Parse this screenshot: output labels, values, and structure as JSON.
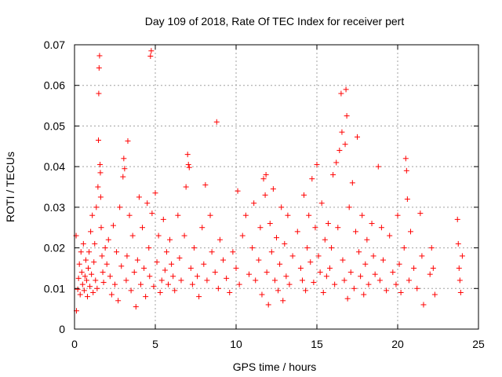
{
  "chart_data": {
    "type": "scatter",
    "title": "Day 109 of 2018, Rate Of TEC Index for receiver pert",
    "xlabel": "GPS time / hours",
    "ylabel": "ROTI / TECUs",
    "xlim": [
      0,
      25
    ],
    "ylim": [
      0,
      0.07
    ],
    "xticks": [
      0,
      5,
      10,
      15,
      20,
      25
    ],
    "xtick_labels": [
      "0",
      "5",
      "10",
      "15",
      "20",
      "25"
    ],
    "yticks": [
      0,
      0.01,
      0.02,
      0.03,
      0.04,
      0.05,
      0.06,
      0.07
    ],
    "ytick_labels": [
      "0",
      "0.01",
      "0.02",
      "0.03",
      "0.04",
      "0.05",
      "0.06",
      "0.07"
    ],
    "grid": true,
    "marker": "+",
    "color": "#ff0000",
    "series": [
      {
        "name": "ROTI",
        "points": [
          [
            0.1,
            0.023
          ],
          [
            0.12,
            0.0045
          ],
          [
            0.2,
            0.0098
          ],
          [
            0.25,
            0.0125
          ],
          [
            0.3,
            0.016
          ],
          [
            0.35,
            0.0085
          ],
          [
            0.4,
            0.019
          ],
          [
            0.45,
            0.014
          ],
          [
            0.5,
            0.011
          ],
          [
            0.55,
            0.021
          ],
          [
            0.6,
            0.0095
          ],
          [
            0.65,
            0.013
          ],
          [
            0.7,
            0.017
          ],
          [
            0.75,
            0.012
          ],
          [
            0.8,
            0.008
          ],
          [
            0.85,
            0.015
          ],
          [
            0.9,
            0.019
          ],
          [
            0.95,
            0.0105
          ],
          [
            1.0,
            0.024
          ],
          [
            1.05,
            0.0135
          ],
          [
            1.1,
            0.028
          ],
          [
            1.15,
            0.009
          ],
          [
            1.2,
            0.0165
          ],
          [
            1.25,
            0.021
          ],
          [
            1.3,
            0.012
          ],
          [
            1.35,
            0.03
          ],
          [
            1.4,
            0.01
          ],
          [
            1.45,
            0.035
          ],
          [
            1.48,
            0.0465
          ],
          [
            1.5,
            0.058
          ],
          [
            1.52,
            0.0643
          ],
          [
            1.55,
            0.0673
          ],
          [
            1.58,
            0.0405
          ],
          [
            1.6,
            0.0385
          ],
          [
            1.62,
            0.0325
          ],
          [
            1.65,
            0.025
          ],
          [
            1.7,
            0.018
          ],
          [
            1.75,
            0.014
          ],
          [
            1.8,
            0.0115
          ],
          [
            1.9,
            0.02
          ],
          [
            2.0,
            0.016
          ],
          [
            2.1,
            0.022
          ],
          [
            2.2,
            0.013
          ],
          [
            2.3,
            0.0085
          ],
          [
            2.4,
            0.0255
          ],
          [
            2.5,
            0.011
          ],
          [
            2.6,
            0.019
          ],
          [
            2.7,
            0.007
          ],
          [
            2.8,
            0.03
          ],
          [
            2.9,
            0.0155
          ],
          [
            3.0,
            0.0375
          ],
          [
            3.05,
            0.042
          ],
          [
            3.1,
            0.0395
          ],
          [
            3.2,
            0.012
          ],
          [
            3.25,
            0.018
          ],
          [
            3.3,
            0.0463
          ],
          [
            3.4,
            0.028
          ],
          [
            3.5,
            0.0095
          ],
          [
            3.6,
            0.023
          ],
          [
            3.7,
            0.014
          ],
          [
            3.8,
            0.0055
          ],
          [
            3.9,
            0.017
          ],
          [
            4.0,
            0.0325
          ],
          [
            4.1,
            0.011
          ],
          [
            4.2,
            0.025
          ],
          [
            4.3,
            0.015
          ],
          [
            4.4,
            0.008
          ],
          [
            4.5,
            0.031
          ],
          [
            4.6,
            0.02
          ],
          [
            4.65,
            0.013
          ],
          [
            4.7,
            0.0672
          ],
          [
            4.75,
            0.0685
          ],
          [
            4.8,
            0.0285
          ],
          [
            4.9,
            0.0105
          ],
          [
            5.0,
            0.0335
          ],
          [
            5.1,
            0.0165
          ],
          [
            5.2,
            0.023
          ],
          [
            5.3,
            0.009
          ],
          [
            5.4,
            0.012
          ],
          [
            5.5,
            0.027
          ],
          [
            5.6,
            0.0145
          ],
          [
            5.7,
            0.019
          ],
          [
            5.8,
            0.011
          ],
          [
            5.9,
            0.022
          ],
          [
            6.0,
            0.016
          ],
          [
            6.1,
            0.013
          ],
          [
            6.2,
            0.0095
          ],
          [
            6.4,
            0.028
          ],
          [
            6.5,
            0.0175
          ],
          [
            6.6,
            0.012
          ],
          [
            6.8,
            0.023
          ],
          [
            6.9,
            0.035
          ],
          [
            7.0,
            0.043
          ],
          [
            7.05,
            0.0405
          ],
          [
            7.1,
            0.0398
          ],
          [
            7.2,
            0.015
          ],
          [
            7.3,
            0.011
          ],
          [
            7.4,
            0.02
          ],
          [
            7.6,
            0.013
          ],
          [
            7.7,
            0.008
          ],
          [
            7.9,
            0.025
          ],
          [
            8.0,
            0.016
          ],
          [
            8.1,
            0.0355
          ],
          [
            8.2,
            0.012
          ],
          [
            8.4,
            0.028
          ],
          [
            8.5,
            0.019
          ],
          [
            8.7,
            0.014
          ],
          [
            8.8,
            0.051
          ],
          [
            8.9,
            0.01
          ],
          [
            9.0,
            0.022
          ],
          [
            9.2,
            0.017
          ],
          [
            9.4,
            0.0125
          ],
          [
            9.6,
            0.009
          ],
          [
            9.8,
            0.019
          ],
          [
            10.0,
            0.015
          ],
          [
            10.1,
            0.034
          ],
          [
            10.2,
            0.011
          ],
          [
            10.4,
            0.023
          ],
          [
            10.6,
            0.028
          ],
          [
            10.8,
            0.0135
          ],
          [
            11.0,
            0.02
          ],
          [
            11.1,
            0.031
          ],
          [
            11.2,
            0.012
          ],
          [
            11.4,
            0.017
          ],
          [
            11.5,
            0.025
          ],
          [
            11.6,
            0.0085
          ],
          [
            11.7,
            0.037
          ],
          [
            11.8,
            0.033
          ],
          [
            11.85,
            0.038
          ],
          [
            11.9,
            0.014
          ],
          [
            12.0,
            0.006
          ],
          [
            12.1,
            0.026
          ],
          [
            12.2,
            0.019
          ],
          [
            12.3,
            0.0345
          ],
          [
            12.4,
            0.012
          ],
          [
            12.5,
            0.0225
          ],
          [
            12.6,
            0.0095
          ],
          [
            12.7,
            0.016
          ],
          [
            12.8,
            0.03
          ],
          [
            12.9,
            0.007
          ],
          [
            13.0,
            0.021
          ],
          [
            13.1,
            0.013
          ],
          [
            13.2,
            0.028
          ],
          [
            13.3,
            0.011
          ],
          [
            13.5,
            0.018
          ],
          [
            13.8,
            0.024
          ],
          [
            14.0,
            0.015
          ],
          [
            14.1,
            0.012
          ],
          [
            14.2,
            0.033
          ],
          [
            14.3,
            0.0095
          ],
          [
            14.4,
            0.02
          ],
          [
            14.5,
            0.028
          ],
          [
            14.6,
            0.0165
          ],
          [
            14.7,
            0.037
          ],
          [
            14.8,
            0.0115
          ],
          [
            14.9,
            0.025
          ],
          [
            15.0,
            0.0405
          ],
          [
            15.1,
            0.018
          ],
          [
            15.2,
            0.014
          ],
          [
            15.3,
            0.031
          ],
          [
            15.4,
            0.009
          ],
          [
            15.5,
            0.022
          ],
          [
            15.6,
            0.013
          ],
          [
            15.7,
            0.026
          ],
          [
            15.8,
            0.015
          ],
          [
            15.9,
            0.02
          ],
          [
            16.0,
            0.038
          ],
          [
            16.1,
            0.011
          ],
          [
            16.2,
            0.041
          ],
          [
            16.3,
            0.025
          ],
          [
            16.4,
            0.044
          ],
          [
            16.5,
            0.058
          ],
          [
            16.55,
            0.0485
          ],
          [
            16.6,
            0.017
          ],
          [
            16.7,
            0.012
          ],
          [
            16.75,
            0.0455
          ],
          [
            16.8,
            0.059
          ],
          [
            16.85,
            0.0525
          ],
          [
            16.9,
            0.0075
          ],
          [
            17.0,
            0.03
          ],
          [
            17.1,
            0.014
          ],
          [
            17.2,
            0.036
          ],
          [
            17.3,
            0.01
          ],
          [
            17.4,
            0.024
          ],
          [
            17.5,
            0.0473
          ],
          [
            17.6,
            0.019
          ],
          [
            17.7,
            0.013
          ],
          [
            17.8,
            0.028
          ],
          [
            17.9,
            0.0085
          ],
          [
            18.0,
            0.016
          ],
          [
            18.1,
            0.022
          ],
          [
            18.2,
            0.011
          ],
          [
            18.4,
            0.026
          ],
          [
            18.5,
            0.018
          ],
          [
            18.6,
            0.0135
          ],
          [
            18.8,
            0.04
          ],
          [
            18.9,
            0.012
          ],
          [
            19.0,
            0.025
          ],
          [
            19.1,
            0.017
          ],
          [
            19.3,
            0.0095
          ],
          [
            19.5,
            0.023
          ],
          [
            19.7,
            0.014
          ],
          [
            19.9,
            0.011
          ],
          [
            20.0,
            0.028
          ],
          [
            20.1,
            0.016
          ],
          [
            20.2,
            0.009
          ],
          [
            20.4,
            0.02
          ],
          [
            20.5,
            0.042
          ],
          [
            20.55,
            0.039
          ],
          [
            20.6,
            0.032
          ],
          [
            20.7,
            0.012
          ],
          [
            20.8,
            0.024
          ],
          [
            21.0,
            0.015
          ],
          [
            21.2,
            0.01
          ],
          [
            21.4,
            0.0285
          ],
          [
            21.5,
            0.018
          ],
          [
            21.6,
            0.006
          ],
          [
            22.0,
            0.0135
          ],
          [
            22.1,
            0.02
          ],
          [
            22.2,
            0.015
          ],
          [
            22.3,
            0.0085
          ],
          [
            23.7,
            0.027
          ],
          [
            23.75,
            0.021
          ],
          [
            23.8,
            0.015
          ],
          [
            23.85,
            0.012
          ],
          [
            23.9,
            0.009
          ],
          [
            24.0,
            0.018
          ]
        ]
      }
    ]
  }
}
